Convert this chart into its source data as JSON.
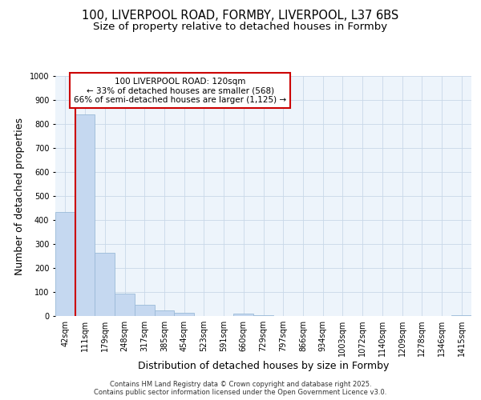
{
  "title_line1": "100, LIVERPOOL ROAD, FORMBY, LIVERPOOL, L37 6BS",
  "title_line2": "Size of property relative to detached houses in Formby",
  "xlabel": "Distribution of detached houses by size in Formby",
  "ylabel": "Number of detached properties",
  "bar_labels": [
    "42sqm",
    "111sqm",
    "179sqm",
    "248sqm",
    "317sqm",
    "385sqm",
    "454sqm",
    "523sqm",
    "591sqm",
    "660sqm",
    "729sqm",
    "797sqm",
    "866sqm",
    "934sqm",
    "1003sqm",
    "1072sqm",
    "1140sqm",
    "1209sqm",
    "1278sqm",
    "1346sqm",
    "1415sqm"
  ],
  "bar_values": [
    435,
    840,
    265,
    95,
    48,
    22,
    12,
    0,
    0,
    10,
    5,
    0,
    0,
    0,
    0,
    0,
    0,
    0,
    0,
    0,
    5
  ],
  "bar_color": "#c5d8f0",
  "bar_edge_color": "#9bbad8",
  "annotation_box_text": "100 LIVERPOOL ROAD: 120sqm\n← 33% of detached houses are smaller (568)\n66% of semi-detached houses are larger (1,125) →",
  "annotation_box_color": "#ffffff",
  "annotation_box_edge_color": "#cc0000",
  "vline_color": "#cc0000",
  "vline_x": 0.5,
  "ylim": [
    0,
    1000
  ],
  "yticks": [
    0,
    100,
    200,
    300,
    400,
    500,
    600,
    700,
    800,
    900,
    1000
  ],
  "grid_color": "#c8d8e8",
  "bg_color": "#edf4fb",
  "figure_bg": "#ffffff",
  "title_fontsize": 10.5,
  "subtitle_fontsize": 9.5,
  "axis_label_fontsize": 9,
  "tick_fontsize": 7,
  "annotation_fontsize": 7.5,
  "footer_text": "Contains HM Land Registry data © Crown copyright and database right 2025.\nContains public sector information licensed under the Open Government Licence v3.0."
}
